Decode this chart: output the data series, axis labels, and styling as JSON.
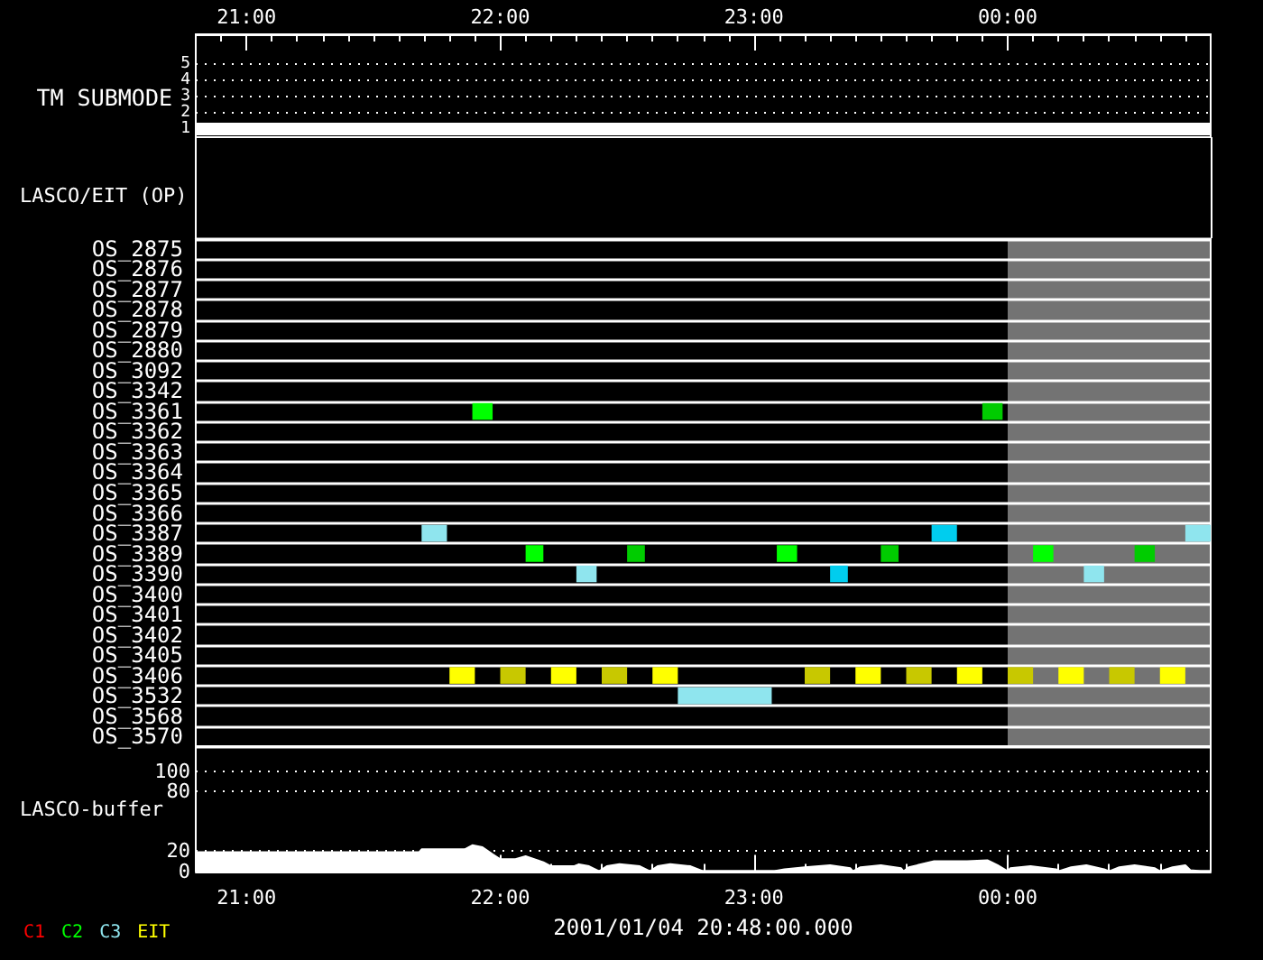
{
  "chart_data": [
    {
      "type": "line",
      "ylabel": "TM SUBMODE",
      "x": [
        20.8,
        24.8
      ],
      "values": [
        1,
        1
      ],
      "color": "#ffffff",
      "xlim": [
        20.8,
        24.8
      ],
      "xticks": [
        {
          "value": 20.9,
          "label": null
        },
        {
          "value": 21,
          "label": "21:00"
        },
        {
          "value": 21.1,
          "label": null
        },
        {
          "value": 21.2,
          "label": null
        },
        {
          "value": 21.3,
          "label": null
        },
        {
          "value": 21.4,
          "label": null
        },
        {
          "value": 21.5,
          "label": null
        },
        {
          "value": 21.6,
          "label": null
        },
        {
          "value": 21.7,
          "label": null
        },
        {
          "value": 21.8,
          "label": null
        },
        {
          "value": 21.9,
          "label": null
        },
        {
          "value": 22,
          "label": "22:00"
        },
        {
          "value": 22.1,
          "label": null
        },
        {
          "value": 22.2,
          "label": null
        },
        {
          "value": 22.3,
          "label": null
        },
        {
          "value": 22.4,
          "label": null
        },
        {
          "value": 22.5,
          "label": null
        },
        {
          "value": 22.6,
          "label": null
        },
        {
          "value": 22.7,
          "label": null
        },
        {
          "value": 22.8,
          "label": null
        },
        {
          "value": 22.9,
          "label": null
        },
        {
          "value": 23,
          "label": "23:00"
        },
        {
          "value": 23.1,
          "label": null
        },
        {
          "value": 23.2,
          "label": null
        },
        {
          "value": 23.3,
          "label": null
        },
        {
          "value": 23.4,
          "label": null
        },
        {
          "value": 23.5,
          "label": null
        },
        {
          "value": 23.6,
          "label": null
        },
        {
          "value": 23.7,
          "label": null
        },
        {
          "value": 23.8,
          "label": null
        },
        {
          "value": 23.9,
          "label": null
        },
        {
          "value": 24,
          "label": "00:00"
        },
        {
          "value": 24.1,
          "label": null
        },
        {
          "value": 24.2,
          "label": null
        },
        {
          "value": 24.3,
          "label": null
        },
        {
          "value": 24.4,
          "label": null
        },
        {
          "value": 24.5,
          "label": null
        },
        {
          "value": 24.6,
          "label": null
        },
        {
          "value": 24.7,
          "label": null
        }
      ],
      "ylim": [
        0.5,
        6.8
      ],
      "yticks": [
        1,
        2,
        3,
        4,
        5
      ],
      "grid": "y"
    },
    {
      "type": "bar",
      "orientation": "horizontal",
      "title": "LASCO/EIT (OP)",
      "categories": [
        "OS_2875",
        "OS_2876",
        "OS_2877",
        "OS_2878",
        "OS_2879",
        "OS_2880",
        "OS_3092",
        "OS_3342",
        "OS_3361",
        "OS_3362",
        "OS_3363",
        "OS_3364",
        "OS_3365",
        "OS_3366",
        "OS_3387",
        "OS_3389",
        "OS_3390",
        "OS_3400",
        "OS_3401",
        "OS_3402",
        "OS_3405",
        "OS_3406",
        "OS_3532",
        "OS_3568",
        "OS_3570"
      ],
      "xlim": [
        20.8,
        24.8
      ],
      "tick_labels": "y",
      "grid": "y",
      "legend": "bottom left",
      "bands": [
        {
          "axis": "x",
          "from": 24,
          "to": 24.8,
          "color": "#737373"
        }
      ],
      "series": [
        {
          "name": "C1",
          "color": "#ff0000",
          "values": [
            null,
            null,
            null,
            null,
            null,
            null,
            null,
            null,
            null,
            null,
            null,
            null,
            null,
            null,
            null,
            null,
            null,
            null,
            null,
            null,
            null,
            null,
            null,
            null,
            null
          ]
        },
        {
          "name": "C2",
          "color": "#00ff00",
          "x": [
            "OS_3361",
            "OS_3389",
            "OS_3389",
            "OS_3389",
            "OS_3389",
            "OS_3361",
            "OS_3389",
            "OS_3389"
          ],
          "base": [
            21.89,
            22.1,
            22.5,
            23.09,
            23.5,
            23.9,
            24.1,
            24.5
          ],
          "values": [
            0.08,
            0.07,
            0.07,
            0.08,
            0.07,
            0.08,
            0.08,
            0.08
          ],
          "colors": [
            "#00ff00",
            "#00ff00",
            "#00cc00",
            "#00ff00",
            "#00cc00",
            "#00cc00",
            "#00ff00",
            "#00cc00"
          ]
        },
        {
          "name": "C3",
          "color": "#8fe5ee",
          "x": [
            "OS_3387",
            "OS_3390",
            "OS_3532",
            "OS_3390",
            "OS_3387",
            "OS_3390",
            "OS_3387"
          ],
          "base": [
            21.69,
            22.3,
            22.7,
            23.3,
            23.7,
            24.3,
            24.7
          ],
          "values": [
            0.1,
            0.08,
            0.37,
            0.07,
            0.1,
            0.08,
            0.1
          ],
          "colors": [
            "#8fe5ee",
            "#8fe5ee",
            "#8fe5ee",
            "#00cdee",
            "#00cdee",
            "#8fe5ee",
            "#8fe5ee"
          ]
        },
        {
          "name": "EIT",
          "color": "#ffff00",
          "x": [
            "OS_3406",
            "OS_3406",
            "OS_3406",
            "OS_3406",
            "OS_3406",
            "OS_3406",
            "OS_3406",
            "OS_3406",
            "OS_3406",
            "OS_3406",
            "OS_3406",
            "OS_3406",
            "OS_3406"
          ],
          "base": [
            21.8,
            22.0,
            22.2,
            22.4,
            22.6,
            23.2,
            23.4,
            23.6,
            23.8,
            24.0,
            24.2,
            24.4,
            24.6
          ],
          "values": [
            0.1,
            0.1,
            0.1,
            0.1,
            0.1,
            0.1,
            0.1,
            0.1,
            0.1,
            0.1,
            0.1,
            0.1,
            0.1
          ],
          "colors": [
            "#ffff00",
            "#c8c800",
            "#ffff00",
            "#c8c800",
            "#ffff00",
            "#c8c800",
            "#ffff00",
            "#c8c800",
            "#ffff00",
            "#c8c800",
            "#ffff00",
            "#c8c800",
            "#ffff00"
          ]
        }
      ]
    },
    {
      "type": "area",
      "xlabel": "2001/01/04 20:48:00.000",
      "ylabel": "LASCO-buffer",
      "color": "#ffffff",
      "x": [
        20.8,
        21.68,
        21.69,
        21.86,
        21.89,
        21.93,
        21.97,
        22.0,
        22.06,
        22.1,
        22.17,
        22.2,
        22.29,
        22.31,
        22.35,
        22.39,
        22.42,
        22.47,
        22.55,
        22.59,
        22.62,
        22.67,
        22.75,
        22.8,
        23.08,
        23.12,
        23.2,
        23.3,
        23.38,
        23.39,
        23.42,
        23.5,
        23.58,
        23.59,
        23.61,
        23.71,
        23.84,
        23.92,
        23.96,
        24.0,
        24.01,
        24.09,
        24.19,
        24.2,
        24.25,
        24.31,
        24.38,
        24.4,
        24.44,
        24.5,
        24.58,
        24.6,
        24.65,
        24.7,
        24.72,
        24.76,
        24.8
      ],
      "values": [
        19,
        19,
        22,
        22,
        26,
        24,
        17,
        12,
        12,
        15,
        9,
        5,
        5,
        7,
        5,
        0,
        5,
        7,
        5,
        0,
        5,
        7,
        5,
        0,
        0,
        2,
        4,
        6,
        3,
        0,
        4,
        6,
        3,
        0,
        4,
        10,
        10,
        11,
        6,
        0,
        3,
        5,
        2,
        0,
        4,
        6,
        2,
        0,
        4,
        6,
        3,
        0,
        4,
        6,
        1,
        0,
        0
      ],
      "xlim": [
        20.8,
        24.8
      ],
      "xticks": [
        {
          "value": 21,
          "label": "21:00"
        },
        {
          "value": 21.2,
          "label": null
        },
        {
          "value": 21.4,
          "label": null
        },
        {
          "value": 21.6,
          "label": null
        },
        {
          "value": 21.8,
          "label": null
        },
        {
          "value": 22,
          "label": "22:00"
        },
        {
          "value": 22.2,
          "label": null
        },
        {
          "value": 22.4,
          "label": null
        },
        {
          "value": 22.6,
          "label": null
        },
        {
          "value": 22.8,
          "label": null
        },
        {
          "value": 23,
          "label": "23:00"
        },
        {
          "value": 23.2,
          "label": null
        },
        {
          "value": 23.4,
          "label": null
        },
        {
          "value": 23.6,
          "label": null
        },
        {
          "value": 23.8,
          "label": null
        },
        {
          "value": 24,
          "label": "00:00"
        },
        {
          "value": 24.2,
          "label": null
        },
        {
          "value": 24.4,
          "label": null
        },
        {
          "value": 24.6,
          "label": null
        }
      ],
      "ylim": [
        0,
        125
      ],
      "yticks": [
        0,
        20,
        80,
        100
      ],
      "grid": "y"
    }
  ]
}
